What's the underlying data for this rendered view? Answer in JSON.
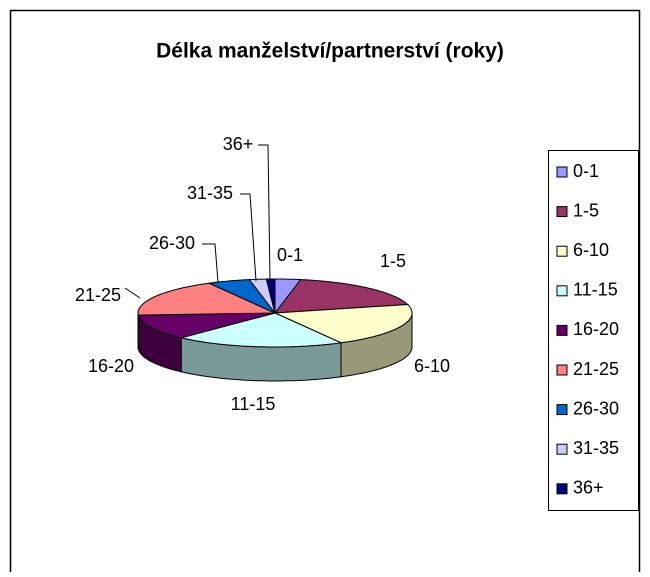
{
  "chart_data": {
    "type": "pie3d",
    "title": "Délka manželství/partnerství (roky)",
    "categories": [
      "0-1",
      "1-5",
      "6-10",
      "11-15",
      "16-20",
      "21-25",
      "26-30",
      "31-35",
      "36+"
    ],
    "values": [
      3,
      18,
      21,
      20,
      12,
      18,
      5,
      2,
      1
    ],
    "colors": [
      "#9999ff",
      "#993366",
      "#ffffcc",
      "#ccffff",
      "#660066",
      "#ff8080",
      "#0066cc",
      "#ccccff",
      "#000080"
    ],
    "legend": "right"
  }
}
